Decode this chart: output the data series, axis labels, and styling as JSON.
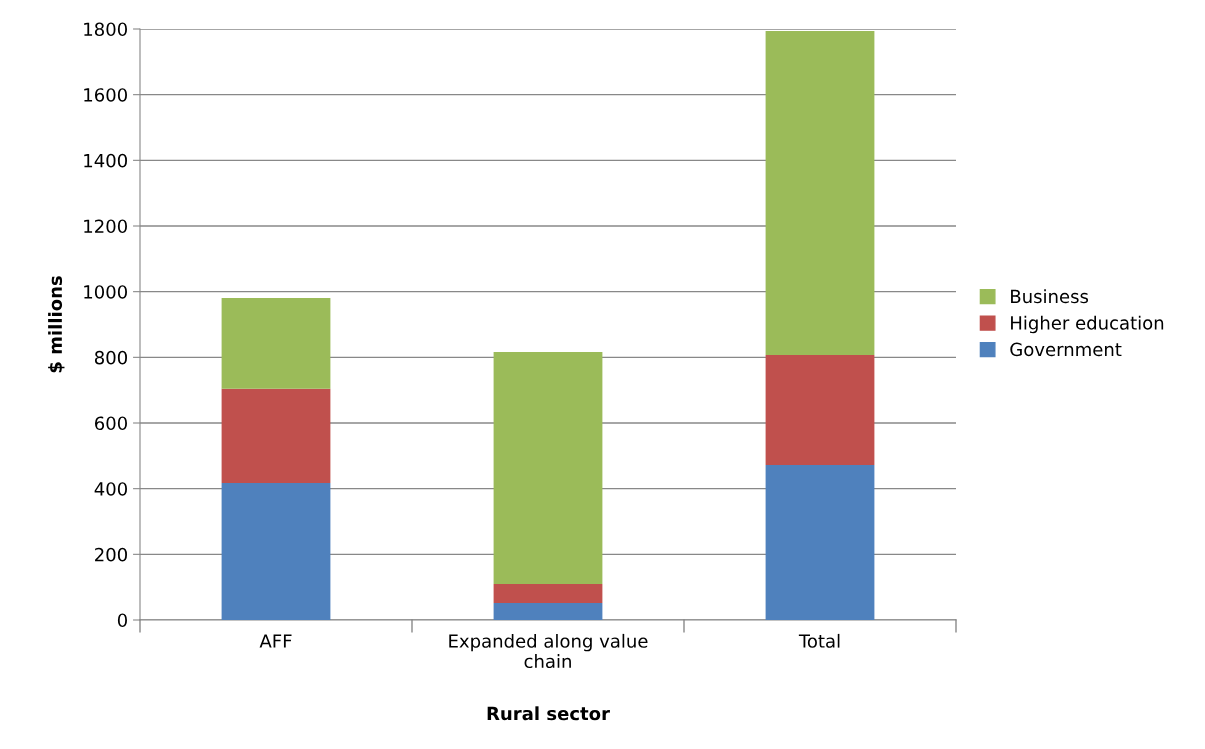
{
  "chart_data": {
    "type": "bar",
    "stacked": true,
    "xlabel": "Rural sector",
    "ylabel": "$ millions",
    "categories": [
      "AFF",
      "Expanded along value chain",
      "Total"
    ],
    "series": [
      {
        "name": "Government",
        "color": "#4f81bd",
        "values": [
          417,
          52,
          472
        ]
      },
      {
        "name": "Higher education",
        "color": "#c0504d",
        "values": [
          287,
          58,
          335
        ]
      },
      {
        "name": "Business",
        "color": "#9bbb59",
        "values": [
          277,
          706,
          987
        ]
      }
    ],
    "ylim": [
      0,
      1800
    ],
    "yticks": [
      0,
      200,
      400,
      600,
      800,
      1000,
      1200,
      1400,
      1600,
      1800
    ],
    "grid": "y",
    "legend": "right"
  }
}
